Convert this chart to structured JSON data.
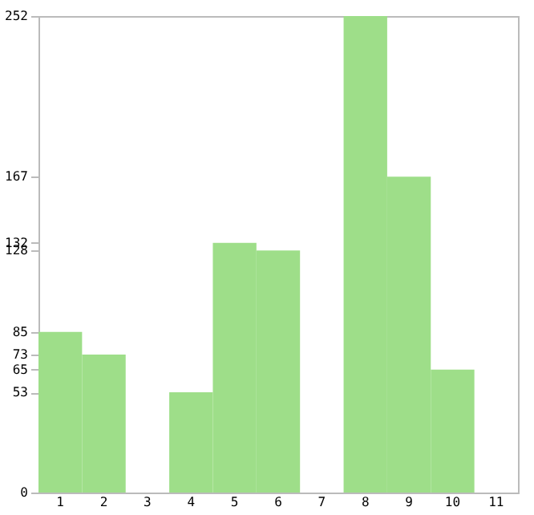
{
  "chart_data": {
    "type": "bar",
    "categories": [
      "1",
      "2",
      "3",
      "4",
      "5",
      "6",
      "7",
      "8",
      "9",
      "10",
      "11"
    ],
    "values": [
      85,
      73,
      0,
      53,
      132,
      128,
      0,
      252,
      167,
      65,
      0
    ],
    "color": "#9ede89",
    "ylim": [
      0,
      252
    ],
    "yticks": [
      0,
      53,
      65,
      73,
      85,
      128,
      132,
      167,
      252
    ],
    "grid": false
  }
}
